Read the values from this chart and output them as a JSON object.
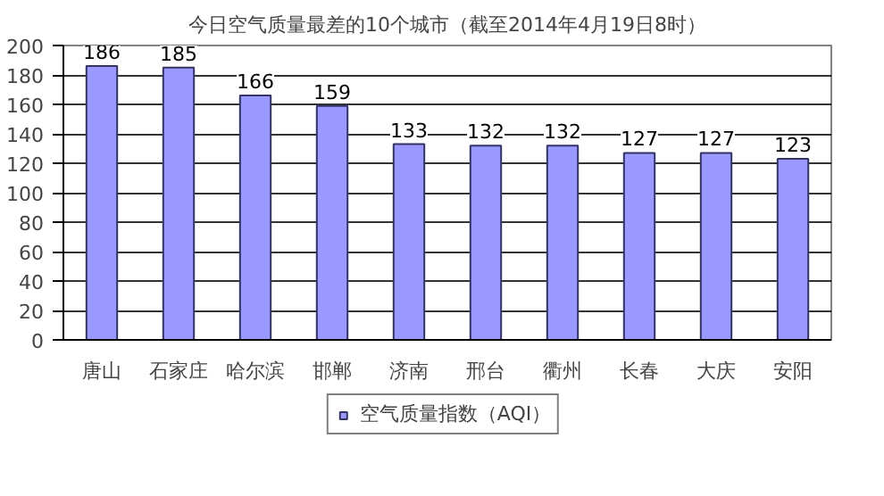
{
  "chart_data": {
    "type": "bar",
    "title": "今日空气质量最差的10个城市（截至2014年4月19日8时）",
    "categories": [
      "唐山",
      "石家庄",
      "哈尔滨",
      "邯郸",
      "济南",
      "邢台",
      "衢州",
      "长春",
      "大庆",
      "安阳"
    ],
    "series": [
      {
        "name": "空气质量指数（AQI）",
        "color": "#9999ff",
        "values": [
          186,
          185,
          166,
          159,
          133,
          132,
          132,
          127,
          127,
          123
        ]
      }
    ],
    "ylim": [
      0,
      200
    ],
    "yticks": [
      0,
      20,
      40,
      60,
      80,
      100,
      120,
      140,
      160,
      180,
      200
    ],
    "grid": "y",
    "legend": "bottom",
    "data_labels": true
  }
}
